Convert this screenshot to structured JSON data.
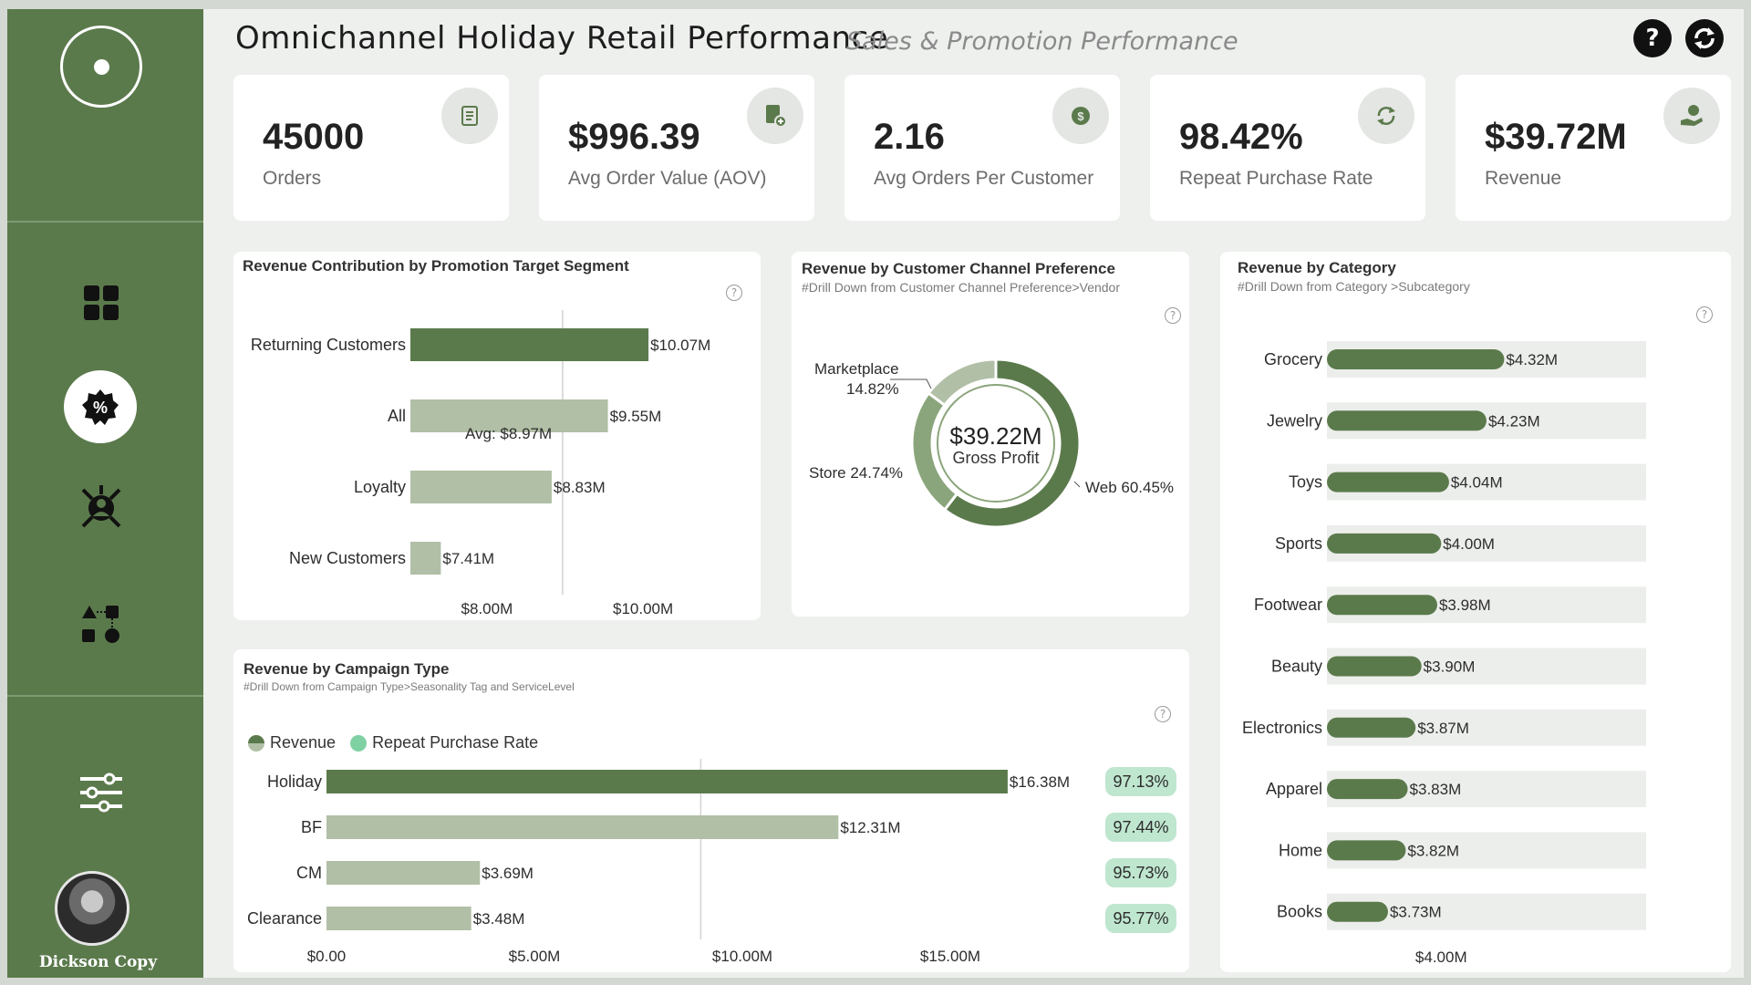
{
  "header": {
    "title": "Omnichannel Holiday Retail Performance",
    "subtitle": "Sales & Promotion Performance",
    "help_label": "?",
    "refresh_icon": "refresh-icon"
  },
  "sidebar": {
    "items": [
      {
        "icon": "dashboard-grid-icon"
      },
      {
        "icon": "promotion-percent-icon",
        "active": true
      },
      {
        "icon": "customer-network-icon"
      },
      {
        "icon": "flow-shapes-icon"
      },
      {
        "icon": "filter-sliders-icon"
      }
    ],
    "user_name": "Dickson Copy"
  },
  "kpis": [
    {
      "value": "45000",
      "label": "Orders",
      "icon": "receipt-icon"
    },
    {
      "value": "$996.39",
      "label": "Avg Order Value (AOV)",
      "icon": "invoice-dollar-icon"
    },
    {
      "value": "2.16",
      "label": "Avg Orders Per Customer",
      "icon": "coin-icon"
    },
    {
      "value": "98.42%",
      "label": "Repeat Purchase Rate",
      "icon": "repeat-icon"
    },
    {
      "value": "$39.72M",
      "label": "Revenue",
      "icon": "hand-money-icon"
    }
  ],
  "colors": {
    "dark": "#5b7a4c",
    "light": "#b1bfa6",
    "track": "#eceeeb",
    "pill": "#bfe6cf",
    "legend_rate": "#7fd1a4"
  },
  "segment_chart": {
    "title": "Revenue Contribution by Promotion Target Segment",
    "avg_label": "Avg: $8.97M",
    "chart_data": {
      "type": "bar",
      "orientation": "horizontal",
      "categories": [
        "Returning Customers",
        "All",
        "Loyalty",
        "New Customers"
      ],
      "values": [
        10.07,
        9.55,
        8.83,
        7.41
      ],
      "value_labels": [
        "$10.07M",
        "$9.55M",
        "$8.83M",
        "$7.41M"
      ],
      "average": 8.97,
      "unit": "M",
      "xticks": [
        "$8.00M",
        "$10.00M"
      ]
    }
  },
  "channel_chart": {
    "title": "Revenue by Customer Channel Preference",
    "subtitle": "#Drill Down from Customer Channel Preference>Vendor",
    "center_value": "$39.22M",
    "center_label": "Gross Profit",
    "chart_data": {
      "type": "pie",
      "categories": [
        "Web",
        "Store",
        "Marketplace"
      ],
      "values": [
        60.45,
        24.74,
        14.82
      ],
      "labels": [
        "Web 60.45%",
        "Store 24.74%",
        "Marketplace",
        "14.82%"
      ]
    }
  },
  "category_chart": {
    "title": "Revenue by Category",
    "subtitle": "#Drill Down from Category >Subcategory",
    "chart_data": {
      "type": "bar",
      "orientation": "horizontal",
      "categories": [
        "Grocery",
        "Jewelry",
        "Toys",
        "Sports",
        "Footwear",
        "Beauty",
        "Electronics",
        "Apparel",
        "Home",
        "Books"
      ],
      "values": [
        4.32,
        4.23,
        4.04,
        4.0,
        3.98,
        3.9,
        3.87,
        3.83,
        3.82,
        3.73
      ],
      "value_labels": [
        "$4.32M",
        "$4.23M",
        "$4.04M",
        "$4.00M",
        "$3.98M",
        "$3.90M",
        "$3.87M",
        "$3.83M",
        "$3.82M",
        "$3.73M"
      ],
      "xticks": [
        "$4.00M"
      ]
    }
  },
  "campaign_chart": {
    "title": "Revenue by Campaign Type",
    "subtitle": "#Drill Down from Campaign Type>Seasonality Tag and ServiceLevel",
    "legend": [
      "Revenue",
      "Repeat Purchase Rate"
    ],
    "chart_data": {
      "type": "bar",
      "orientation": "horizontal",
      "categories": [
        "Holiday",
        "BF",
        "CM",
        "Clearance"
      ],
      "series": [
        {
          "name": "Revenue",
          "values": [
            16.38,
            12.31,
            3.69,
            3.48
          ],
          "value_labels": [
            "$16.38M",
            "$12.31M",
            "$3.69M",
            "$3.48M"
          ]
        },
        {
          "name": "Repeat Purchase Rate",
          "values": [
            97.13,
            97.44,
            95.73,
            95.77
          ],
          "value_labels": [
            "97.13%",
            "97.44%",
            "95.73%",
            "95.77%"
          ]
        }
      ],
      "xlim": [
        0,
        17
      ],
      "xticks": [
        "$0.00",
        "$5.00M",
        "$10.00M",
        "$15.00M"
      ]
    }
  }
}
